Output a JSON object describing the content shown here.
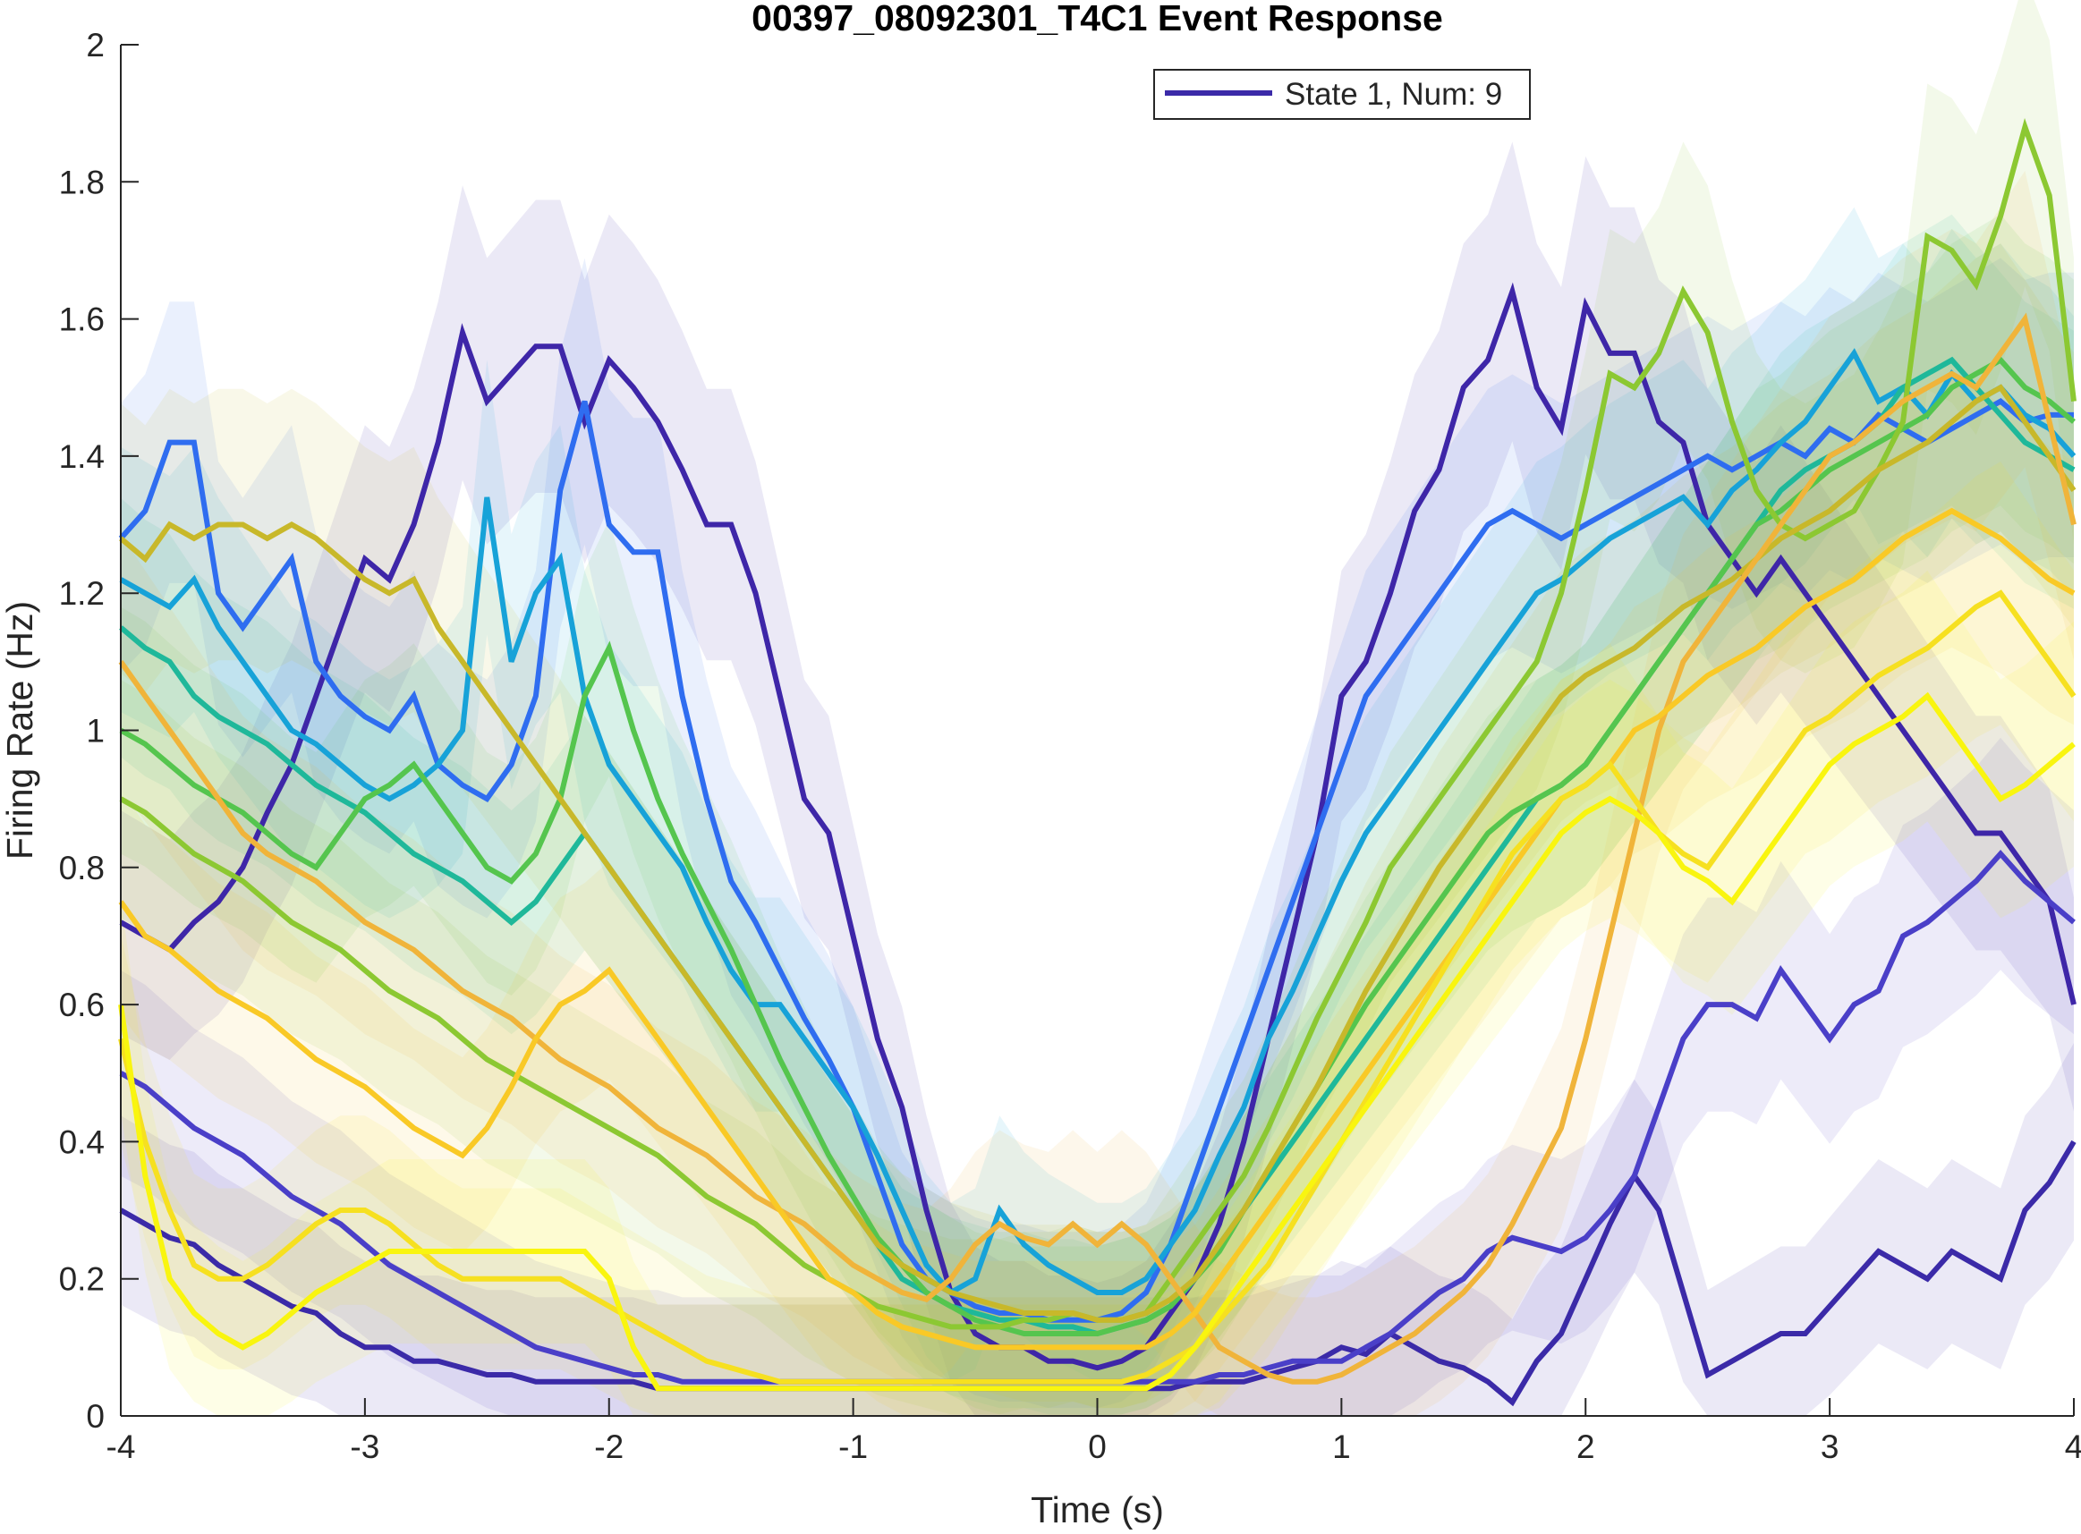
{
  "chart_data": {
    "type": "line",
    "title": "00397_08092301_T4C1 Event Response",
    "xlabel": "Time (s)",
    "ylabel": "Firing Rate (Hz)",
    "xlim": [
      -4,
      4
    ],
    "ylim": [
      0,
      2
    ],
    "xticks": [
      -4,
      -3,
      -2,
      -1,
      0,
      1,
      2,
      3,
      4
    ],
    "yticks": [
      0,
      0.2,
      0.4,
      0.6,
      0.8,
      1,
      1.2,
      1.4,
      1.6,
      1.8,
      2
    ],
    "xtick_labels": [
      "-4",
      "-3",
      "-2",
      "-1",
      "0",
      "1",
      "2",
      "3",
      "4"
    ],
    "ytick_labels": [
      "0",
      "0.2",
      "0.4",
      "0.6",
      "0.8",
      "1",
      "1.2",
      "1.4",
      "1.6",
      "1.8",
      "2"
    ],
    "grid": false,
    "legend_position": "top-right",
    "legend": [
      {
        "label": "State 1, Num: 9",
        "color": "#3b2aa8"
      }
    ],
    "colormap": "parula",
    "shaded_error_band": true,
    "time_bins": [
      -4,
      -3.9,
      -3.8,
      -3.7,
      -3.6,
      -3.5,
      -3.4,
      -3.3,
      -3.2,
      -3.1,
      -3,
      -2.9,
      -2.8,
      -2.7,
      -2.6,
      -2.5,
      -2.4,
      -2.3,
      -2.2,
      -2.1,
      -2,
      -1.9,
      -1.8,
      -1.7,
      -1.6,
      -1.5,
      -1.4,
      -1.3,
      -1.2,
      -1.1,
      -1,
      -0.9,
      -0.8,
      -0.7,
      -0.6,
      -0.5,
      -0.4,
      -0.3,
      -0.2,
      -0.1,
      0,
      0.1,
      0.2,
      0.3,
      0.4,
      0.5,
      0.6,
      0.7,
      0.8,
      0.9,
      1,
      1.1,
      1.2,
      1.3,
      1.4,
      1.5,
      1.6,
      1.7,
      1.8,
      1.9,
      2,
      2.1,
      2.2,
      2.3,
      2.4,
      2.5,
      2.6,
      2.7,
      2.8,
      2.9,
      3,
      3.1,
      3.2,
      3.3,
      3.4,
      3.5,
      3.6,
      3.7,
      3.8,
      3.9,
      4
    ],
    "series": [
      {
        "color": "#3e26a8",
        "values": [
          0.72,
          0.7,
          0.68,
          0.72,
          0.75,
          0.8,
          0.88,
          0.95,
          1.05,
          1.15,
          1.25,
          1.22,
          1.3,
          1.42,
          1.58,
          1.48,
          1.52,
          1.56,
          1.56,
          1.45,
          1.54,
          1.5,
          1.45,
          1.38,
          1.3,
          1.3,
          1.2,
          1.05,
          0.9,
          0.85,
          0.7,
          0.55,
          0.45,
          0.3,
          0.18,
          0.12,
          0.1,
          0.1,
          0.08,
          0.08,
          0.07,
          0.08,
          0.1,
          0.15,
          0.2,
          0.28,
          0.4,
          0.55,
          0.7,
          0.85,
          1.05,
          1.1,
          1.2,
          1.32,
          1.38,
          1.5,
          1.54,
          1.64,
          1.5,
          1.44,
          1.62,
          1.55,
          1.55,
          1.45,
          1.42,
          1.3,
          1.25,
          1.2,
          1.25,
          1.2,
          1.15,
          1.1,
          1.05,
          1,
          0.95,
          0.9,
          0.85,
          0.85,
          0.8,
          0.75,
          0.6
        ]
      },
      {
        "color": "#3b2aa8",
        "values": [
          0.3,
          0.28,
          0.26,
          0.25,
          0.22,
          0.2,
          0.18,
          0.16,
          0.15,
          0.12,
          0.1,
          0.1,
          0.08,
          0.08,
          0.07,
          0.06,
          0.06,
          0.05,
          0.05,
          0.05,
          0.05,
          0.05,
          0.04,
          0.04,
          0.04,
          0.04,
          0.04,
          0.04,
          0.04,
          0.04,
          0.04,
          0.04,
          0.04,
          0.04,
          0.04,
          0.04,
          0.04,
          0.04,
          0.04,
          0.04,
          0.04,
          0.04,
          0.04,
          0.04,
          0.05,
          0.05,
          0.05,
          0.06,
          0.07,
          0.08,
          0.1,
          0.09,
          0.12,
          0.1,
          0.08,
          0.07,
          0.05,
          0.02,
          0.08,
          0.12,
          0.2,
          0.28,
          0.35,
          0.3,
          0.18,
          0.06,
          0.08,
          0.1,
          0.12,
          0.12,
          0.16,
          0.2,
          0.24,
          0.22,
          0.2,
          0.24,
          0.22,
          0.2,
          0.3,
          0.34,
          0.4
        ]
      },
      {
        "color": "#4a3fc8",
        "values": [
          0.5,
          0.48,
          0.45,
          0.42,
          0.4,
          0.38,
          0.35,
          0.32,
          0.3,
          0.28,
          0.25,
          0.22,
          0.2,
          0.18,
          0.16,
          0.14,
          0.12,
          0.1,
          0.09,
          0.08,
          0.07,
          0.06,
          0.06,
          0.05,
          0.05,
          0.05,
          0.05,
          0.05,
          0.05,
          0.05,
          0.05,
          0.05,
          0.05,
          0.05,
          0.05,
          0.05,
          0.05,
          0.05,
          0.05,
          0.05,
          0.05,
          0.05,
          0.05,
          0.05,
          0.05,
          0.06,
          0.06,
          0.07,
          0.08,
          0.08,
          0.08,
          0.1,
          0.12,
          0.15,
          0.18,
          0.2,
          0.24,
          0.26,
          0.25,
          0.24,
          0.26,
          0.3,
          0.35,
          0.45,
          0.55,
          0.6,
          0.6,
          0.58,
          0.65,
          0.6,
          0.55,
          0.6,
          0.62,
          0.7,
          0.72,
          0.75,
          0.78,
          0.82,
          0.78,
          0.75,
          0.72
        ]
      },
      {
        "color": "#2f6df0",
        "values": [
          1.28,
          1.32,
          1.42,
          1.42,
          1.2,
          1.15,
          1.2,
          1.25,
          1.1,
          1.05,
          1.02,
          1.0,
          1.05,
          0.95,
          0.92,
          0.9,
          0.95,
          1.05,
          1.35,
          1.48,
          1.3,
          1.26,
          1.26,
          1.05,
          0.9,
          0.78,
          0.72,
          0.65,
          0.58,
          0.52,
          0.45,
          0.35,
          0.25,
          0.2,
          0.18,
          0.16,
          0.15,
          0.15,
          0.14,
          0.14,
          0.14,
          0.15,
          0.18,
          0.25,
          0.35,
          0.45,
          0.55,
          0.65,
          0.75,
          0.85,
          0.95,
          1.05,
          1.1,
          1.15,
          1.2,
          1.25,
          1.3,
          1.32,
          1.3,
          1.28,
          1.3,
          1.32,
          1.34,
          1.36,
          1.38,
          1.4,
          1.38,
          1.4,
          1.42,
          1.4,
          1.44,
          1.42,
          1.46,
          1.44,
          1.42,
          1.44,
          1.46,
          1.48,
          1.45,
          1.46,
          1.46
        ]
      },
      {
        "color": "#17a2d8",
        "values": [
          1.22,
          1.2,
          1.18,
          1.22,
          1.15,
          1.1,
          1.05,
          1.0,
          0.98,
          0.95,
          0.92,
          0.9,
          0.92,
          0.95,
          1.0,
          1.34,
          1.1,
          1.2,
          1.25,
          1.05,
          0.95,
          0.9,
          0.85,
          0.8,
          0.72,
          0.65,
          0.6,
          0.6,
          0.55,
          0.5,
          0.45,
          0.38,
          0.3,
          0.22,
          0.18,
          0.2,
          0.3,
          0.25,
          0.22,
          0.2,
          0.18,
          0.18,
          0.2,
          0.25,
          0.3,
          0.38,
          0.45,
          0.55,
          0.62,
          0.7,
          0.78,
          0.85,
          0.9,
          0.95,
          1.0,
          1.05,
          1.1,
          1.15,
          1.2,
          1.22,
          1.25,
          1.28,
          1.3,
          1.32,
          1.34,
          1.3,
          1.35,
          1.38,
          1.42,
          1.45,
          1.5,
          1.55,
          1.48,
          1.5,
          1.46,
          1.52,
          1.48,
          1.5,
          1.46,
          1.44,
          1.4
        ]
      },
      {
        "color": "#1fb89a",
        "values": [
          1.15,
          1.12,
          1.1,
          1.05,
          1.02,
          1.0,
          0.98,
          0.95,
          0.92,
          0.9,
          0.88,
          0.85,
          0.82,
          0.8,
          0.78,
          0.75,
          0.72,
          0.75,
          0.8,
          0.85,
          0.8,
          0.75,
          0.7,
          0.65,
          0.6,
          0.55,
          0.5,
          0.45,
          0.4,
          0.35,
          0.3,
          0.25,
          0.2,
          0.18,
          0.16,
          0.15,
          0.14,
          0.14,
          0.13,
          0.13,
          0.12,
          0.13,
          0.14,
          0.16,
          0.2,
          0.25,
          0.3,
          0.35,
          0.4,
          0.45,
          0.5,
          0.55,
          0.6,
          0.65,
          0.7,
          0.75,
          0.8,
          0.85,
          0.9,
          0.92,
          0.95,
          1.0,
          1.05,
          1.1,
          1.15,
          1.2,
          1.25,
          1.3,
          1.35,
          1.38,
          1.4,
          1.42,
          1.45,
          1.5,
          1.52,
          1.54,
          1.5,
          1.46,
          1.42,
          1.4,
          1.38
        ]
      },
      {
        "color": "#55c54e",
        "values": [
          1.0,
          0.98,
          0.95,
          0.92,
          0.9,
          0.88,
          0.85,
          0.82,
          0.8,
          0.85,
          0.9,
          0.92,
          0.95,
          0.9,
          0.85,
          0.8,
          0.78,
          0.82,
          0.9,
          1.05,
          1.12,
          1.0,
          0.9,
          0.82,
          0.75,
          0.68,
          0.6,
          0.52,
          0.45,
          0.38,
          0.32,
          0.26,
          0.22,
          0.18,
          0.16,
          0.14,
          0.13,
          0.12,
          0.12,
          0.12,
          0.12,
          0.13,
          0.14,
          0.16,
          0.2,
          0.24,
          0.3,
          0.36,
          0.42,
          0.48,
          0.54,
          0.6,
          0.65,
          0.7,
          0.75,
          0.8,
          0.85,
          0.88,
          0.9,
          0.92,
          0.95,
          1.0,
          1.05,
          1.1,
          1.15,
          1.2,
          1.25,
          1.3,
          1.32,
          1.35,
          1.38,
          1.4,
          1.42,
          1.44,
          1.46,
          1.5,
          1.52,
          1.54,
          1.5,
          1.48,
          1.45
        ]
      },
      {
        "color": "#8cc832",
        "values": [
          0.9,
          0.88,
          0.85,
          0.82,
          0.8,
          0.78,
          0.75,
          0.72,
          0.7,
          0.68,
          0.65,
          0.62,
          0.6,
          0.58,
          0.55,
          0.52,
          0.5,
          0.48,
          0.46,
          0.44,
          0.42,
          0.4,
          0.38,
          0.35,
          0.32,
          0.3,
          0.28,
          0.25,
          0.22,
          0.2,
          0.18,
          0.16,
          0.15,
          0.14,
          0.13,
          0.13,
          0.13,
          0.14,
          0.14,
          0.15,
          0.14,
          0.14,
          0.15,
          0.2,
          0.25,
          0.3,
          0.35,
          0.42,
          0.5,
          0.58,
          0.65,
          0.72,
          0.8,
          0.85,
          0.9,
          0.95,
          1.0,
          1.05,
          1.1,
          1.2,
          1.35,
          1.52,
          1.5,
          1.55,
          1.64,
          1.58,
          1.45,
          1.35,
          1.3,
          1.28,
          1.3,
          1.32,
          1.38,
          1.45,
          1.72,
          1.7,
          1.65,
          1.75,
          1.88,
          1.78,
          1.48
        ]
      },
      {
        "color": "#c8b82a",
        "values": [
          1.28,
          1.25,
          1.3,
          1.28,
          1.3,
          1.3,
          1.28,
          1.3,
          1.28,
          1.25,
          1.22,
          1.2,
          1.22,
          1.15,
          1.1,
          1.05,
          1.0,
          0.95,
          0.9,
          0.85,
          0.8,
          0.75,
          0.7,
          0.65,
          0.6,
          0.55,
          0.5,
          0.45,
          0.4,
          0.35,
          0.3,
          0.25,
          0.22,
          0.2,
          0.18,
          0.17,
          0.16,
          0.15,
          0.15,
          0.15,
          0.14,
          0.14,
          0.15,
          0.17,
          0.2,
          0.25,
          0.3,
          0.36,
          0.42,
          0.48,
          0.55,
          0.62,
          0.68,
          0.74,
          0.8,
          0.85,
          0.9,
          0.95,
          1.0,
          1.05,
          1.08,
          1.1,
          1.12,
          1.15,
          1.18,
          1.2,
          1.22,
          1.25,
          1.28,
          1.3,
          1.32,
          1.35,
          1.38,
          1.4,
          1.42,
          1.45,
          1.48,
          1.5,
          1.45,
          1.4,
          1.35
        ]
      },
      {
        "color": "#f0b43a",
        "values": [
          1.1,
          1.05,
          1.0,
          0.95,
          0.9,
          0.85,
          0.82,
          0.8,
          0.78,
          0.75,
          0.72,
          0.7,
          0.68,
          0.65,
          0.62,
          0.6,
          0.58,
          0.55,
          0.52,
          0.5,
          0.48,
          0.45,
          0.42,
          0.4,
          0.38,
          0.35,
          0.32,
          0.3,
          0.28,
          0.25,
          0.22,
          0.2,
          0.18,
          0.17,
          0.2,
          0.25,
          0.28,
          0.26,
          0.25,
          0.28,
          0.25,
          0.28,
          0.25,
          0.2,
          0.15,
          0.1,
          0.08,
          0.06,
          0.05,
          0.05,
          0.06,
          0.08,
          0.1,
          0.12,
          0.15,
          0.18,
          0.22,
          0.28,
          0.35,
          0.42,
          0.55,
          0.7,
          0.85,
          1.0,
          1.1,
          1.15,
          1.2,
          1.25,
          1.3,
          1.35,
          1.4,
          1.42,
          1.45,
          1.48,
          1.5,
          1.52,
          1.5,
          1.55,
          1.6,
          1.45,
          1.3
        ]
      },
      {
        "color": "#f9c926",
        "values": [
          0.75,
          0.7,
          0.68,
          0.65,
          0.62,
          0.6,
          0.58,
          0.55,
          0.52,
          0.5,
          0.48,
          0.45,
          0.42,
          0.4,
          0.38,
          0.42,
          0.48,
          0.55,
          0.6,
          0.62,
          0.65,
          0.6,
          0.55,
          0.5,
          0.45,
          0.4,
          0.35,
          0.3,
          0.25,
          0.2,
          0.18,
          0.15,
          0.13,
          0.12,
          0.11,
          0.1,
          0.1,
          0.1,
          0.1,
          0.1,
          0.1,
          0.1,
          0.1,
          0.12,
          0.15,
          0.2,
          0.25,
          0.3,
          0.35,
          0.4,
          0.45,
          0.5,
          0.55,
          0.6,
          0.65,
          0.7,
          0.75,
          0.8,
          0.85,
          0.9,
          0.92,
          0.95,
          1.0,
          1.02,
          1.05,
          1.08,
          1.1,
          1.12,
          1.15,
          1.18,
          1.2,
          1.22,
          1.25,
          1.28,
          1.3,
          1.32,
          1.3,
          1.28,
          1.25,
          1.22,
          1.2
        ]
      },
      {
        "color": "#f6e020",
        "values": [
          0.55,
          0.4,
          0.3,
          0.22,
          0.2,
          0.2,
          0.22,
          0.25,
          0.28,
          0.3,
          0.3,
          0.28,
          0.25,
          0.22,
          0.2,
          0.2,
          0.2,
          0.2,
          0.2,
          0.18,
          0.16,
          0.14,
          0.12,
          0.1,
          0.08,
          0.07,
          0.06,
          0.05,
          0.05,
          0.05,
          0.05,
          0.05,
          0.05,
          0.05,
          0.05,
          0.05,
          0.05,
          0.05,
          0.05,
          0.05,
          0.05,
          0.05,
          0.06,
          0.08,
          0.1,
          0.14,
          0.18,
          0.22,
          0.28,
          0.34,
          0.4,
          0.46,
          0.52,
          0.58,
          0.64,
          0.7,
          0.76,
          0.82,
          0.86,
          0.9,
          0.92,
          0.95,
          0.9,
          0.85,
          0.82,
          0.8,
          0.85,
          0.9,
          0.95,
          1.0,
          1.02,
          1.05,
          1.08,
          1.1,
          1.12,
          1.15,
          1.18,
          1.2,
          1.15,
          1.1,
          1.05
        ]
      },
      {
        "color": "#f9f50f",
        "values": [
          0.6,
          0.35,
          0.2,
          0.15,
          0.12,
          0.1,
          0.12,
          0.15,
          0.18,
          0.2,
          0.22,
          0.24,
          0.24,
          0.24,
          0.24,
          0.24,
          0.24,
          0.24,
          0.24,
          0.24,
          0.2,
          0.1,
          0.04,
          0.04,
          0.04,
          0.04,
          0.04,
          0.04,
          0.04,
          0.04,
          0.04,
          0.04,
          0.04,
          0.04,
          0.04,
          0.04,
          0.04,
          0.04,
          0.04,
          0.04,
          0.04,
          0.04,
          0.04,
          0.06,
          0.1,
          0.15,
          0.2,
          0.25,
          0.3,
          0.35,
          0.4,
          0.45,
          0.5,
          0.55,
          0.6,
          0.65,
          0.7,
          0.75,
          0.8,
          0.85,
          0.88,
          0.9,
          0.88,
          0.85,
          0.8,
          0.78,
          0.75,
          0.8,
          0.85,
          0.9,
          0.95,
          0.98,
          1.0,
          1.02,
          1.05,
          1.0,
          0.95,
          0.9,
          0.92,
          0.95,
          0.98
        ]
      }
    ]
  }
}
